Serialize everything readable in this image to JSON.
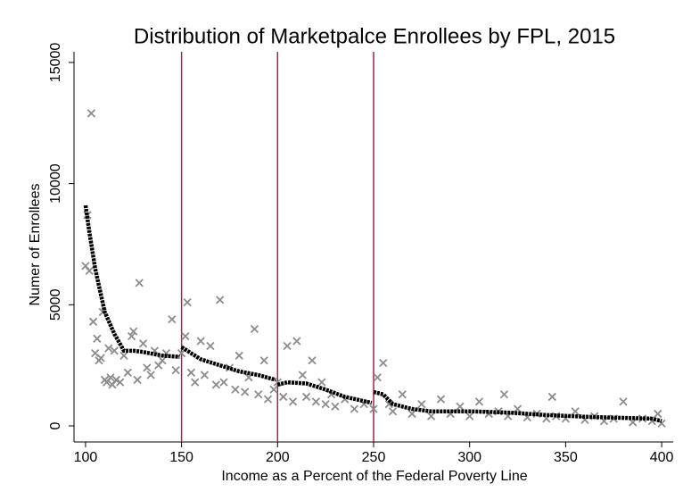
{
  "chart_data": {
    "type": "scatter",
    "title": "Distribution of Marketpalce Enrollees by FPL, 2015",
    "x_label": "Income as a Percent of the Federal Poverty Line",
    "y_label": "Numer of Enrollees",
    "xlim": [
      94,
      406
    ],
    "ylim": [
      -663,
      15440
    ],
    "xticks": [
      100,
      150,
      200,
      250,
      300,
      350,
      400
    ],
    "yticks": [
      0,
      5000,
      10000,
      15000
    ],
    "grid": false,
    "vlines": [
      150,
      200,
      250
    ],
    "vline_color": "#a3214f",
    "scatter": {
      "color": "#8c8c8c",
      "x": [
        100,
        101,
        102,
        103,
        104,
        105,
        106,
        107,
        108,
        109,
        110,
        111,
        112,
        113,
        114,
        115,
        116,
        118,
        120,
        122,
        124,
        125,
        127,
        128,
        130,
        132,
        134,
        136,
        138,
        140,
        142,
        145,
        147,
        150,
        152,
        153,
        155,
        157,
        160,
        162,
        165,
        168,
        170,
        172,
        175,
        178,
        180,
        183,
        185,
        188,
        190,
        193,
        195,
        198,
        200,
        203,
        205,
        208,
        210,
        213,
        215,
        218,
        220,
        223,
        225,
        228,
        230,
        235,
        240,
        245,
        250,
        252,
        255,
        258,
        260,
        265,
        270,
        275,
        280,
        285,
        290,
        295,
        300,
        305,
        310,
        315,
        318,
        320,
        325,
        330,
        335,
        340,
        343,
        345,
        350,
        355,
        360,
        365,
        370,
        375,
        380,
        385,
        390,
        395,
        398,
        400
      ],
      "values": [
        6600,
        8700,
        6400,
        12900,
        4300,
        3000,
        3600,
        2700,
        2800,
        4700,
        1900,
        1800,
        3200,
        2000,
        1700,
        3100,
        1900,
        1800,
        2900,
        2200,
        3700,
        3900,
        1900,
        5900,
        3400,
        2400,
        2100,
        3100,
        2500,
        2700,
        3000,
        4400,
        2300,
        3000,
        3700,
        5100,
        2200,
        1800,
        3500,
        2100,
        3300,
        1700,
        5200,
        1800,
        2400,
        1500,
        2900,
        1400,
        2000,
        4000,
        1300,
        2700,
        1100,
        1500,
        1800,
        1200,
        3300,
        1000,
        3500,
        2100,
        1200,
        2700,
        1000,
        1800,
        900,
        1300,
        800,
        1100,
        700,
        900,
        700,
        2000,
        2600,
        900,
        600,
        1300,
        500,
        900,
        400,
        1100,
        500,
        800,
        400,
        1000,
        500,
        600,
        1300,
        400,
        700,
        350,
        500,
        300,
        1200,
        400,
        300,
        600,
        250,
        400,
        200,
        300,
        1000,
        150,
        300,
        200,
        500,
        100
      ]
    },
    "fit": {
      "color": "#000000",
      "x": [
        100,
        102,
        105,
        110,
        115,
        120,
        125,
        130,
        140,
        149,
        149.5,
        150,
        155,
        160,
        170,
        180,
        190,
        199,
        199.5,
        200,
        205,
        215,
        225,
        235,
        249,
        249.5,
        250,
        255,
        260,
        270,
        280,
        300,
        320,
        340,
        360,
        380,
        395,
        400
      ],
      "values": [
        9100,
        8000,
        6500,
        4700,
        3800,
        3100,
        3100,
        3050,
        2900,
        2850,
        null,
        3250,
        3000,
        2750,
        2500,
        2250,
        2100,
        1900,
        null,
        1700,
        1800,
        1750,
        1500,
        1200,
        950,
        null,
        1400,
        1300,
        900,
        700,
        600,
        600,
        550,
        450,
        380,
        330,
        300,
        200
      ]
    }
  }
}
